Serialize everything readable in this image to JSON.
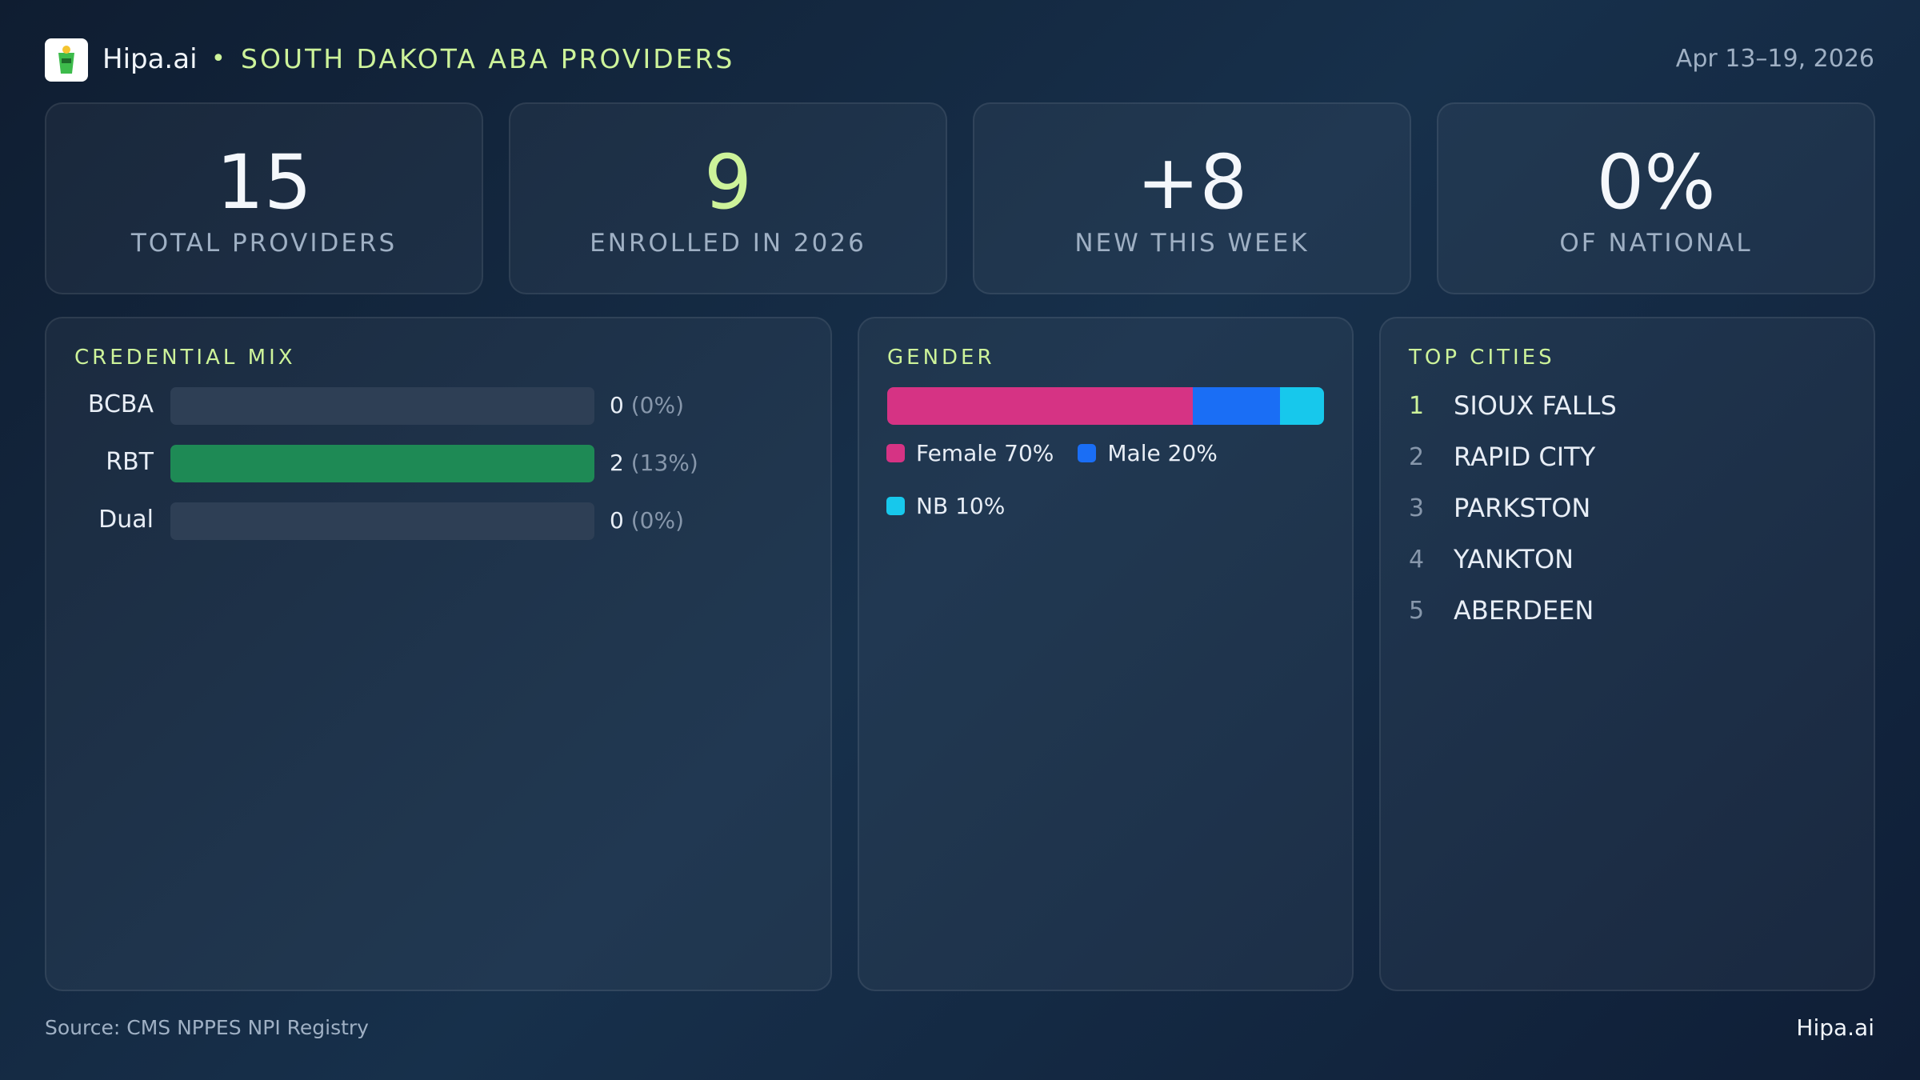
{
  "header": {
    "brand": "Hipa.ai",
    "title": "SOUTH DAKOTA ABA PROVIDERS",
    "date": "Apr 13–19, 2026"
  },
  "kpis": [
    {
      "value": "15",
      "label": "TOTAL PROVIDERS"
    },
    {
      "value": "9",
      "label": "ENROLLED IN 2026"
    },
    {
      "value": "+8",
      "label": "NEW THIS WEEK"
    },
    {
      "value": "0%",
      "label": "OF NATIONAL"
    }
  ],
  "credential_mix": {
    "title": "CREDENTIAL MIX",
    "color": "#1e8a55",
    "rows": [
      {
        "name": "BCBA",
        "count": 0,
        "pct": "(0%)"
      },
      {
        "name": "RBT",
        "count": 2,
        "pct": "(13%)"
      },
      {
        "name": "Dual",
        "count": 0,
        "pct": "(0%)"
      }
    ]
  },
  "gender": {
    "title": "GENDER",
    "series": [
      {
        "name": "Female",
        "color": "#d63384",
        "value": 70,
        "value_label": "70%"
      },
      {
        "name": "Male",
        "color": "#1a6ef5",
        "value": 20,
        "value_label": "20%"
      },
      {
        "name": "NB",
        "color": "#17c8ec",
        "value": 10,
        "value_label": "10%"
      }
    ]
  },
  "top_cities": {
    "title": "TOP CITIES",
    "rows": [
      {
        "rank": 1,
        "name": "SIOUX FALLS"
      },
      {
        "rank": 2,
        "name": "RAPID CITY"
      },
      {
        "rank": 3,
        "name": "PARKSTON"
      },
      {
        "rank": 4,
        "name": "YANKTON"
      },
      {
        "rank": 5,
        "name": "ABERDEEN"
      }
    ]
  },
  "footer": {
    "source": "Source: CMS NPPES NPI Registry",
    "brand": "Hipa.ai"
  }
}
